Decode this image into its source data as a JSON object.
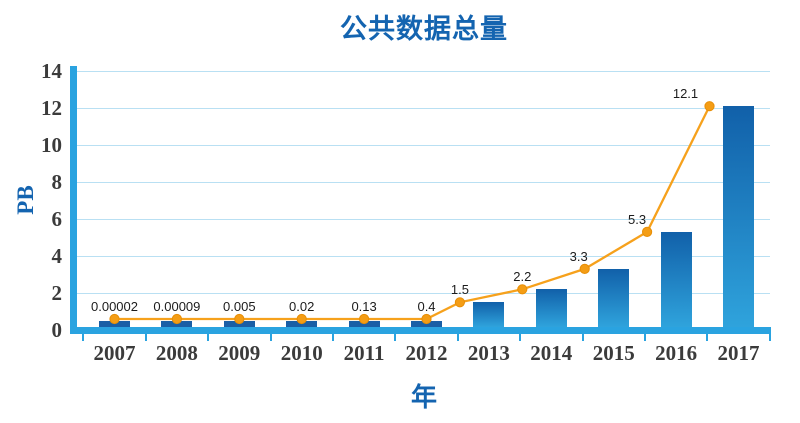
{
  "chart_data": {
    "type": "bar",
    "overlay": "line",
    "title": "公共数据总量",
    "xlabel": "年",
    "ylabel": "PB",
    "categories": [
      "2007",
      "2008",
      "2009",
      "2010",
      "2011",
      "2012",
      "2013",
      "2014",
      "2015",
      "2016",
      "2017"
    ],
    "values": [
      2e-05,
      9e-05,
      0.005,
      0.02,
      0.13,
      0.4,
      1.5,
      2.2,
      3.3,
      5.3,
      12.1
    ],
    "data_labels": [
      "0.00002",
      "0.00009",
      "0.005",
      "0.02",
      "0.13",
      "0.4",
      "1.5",
      "2.2",
      "3.3",
      "5.3",
      "12.1"
    ],
    "y_ticks": [
      0,
      2,
      4,
      6,
      8,
      10,
      12,
      14
    ],
    "ylim": [
      0,
      14
    ],
    "grid": true,
    "legend": false
  },
  "colors": {
    "title_text": "#1464b0",
    "axis": "#2aa3e0",
    "gridline": "#b9e0f3",
    "bar_solid": "#1a5fa6",
    "bar_gradient_top": "#1160a9",
    "bar_gradient_bottom": "#2fa3dc",
    "line": "#f6a11c",
    "marker_fill": "#f49d15",
    "marker_stroke": "#e78e06",
    "tick_text": "#3b3b3b",
    "data_label_text": "#1c1c1c"
  }
}
